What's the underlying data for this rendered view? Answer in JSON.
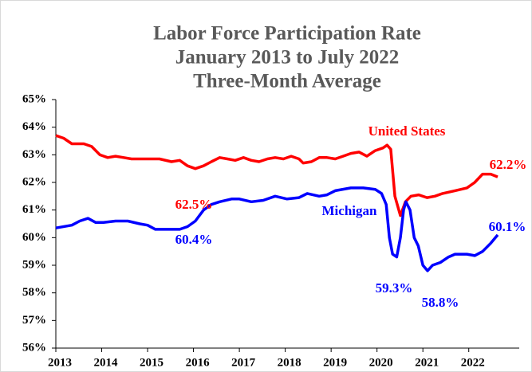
{
  "chart_data": {
    "type": "line",
    "title": "Labor Force Participation Rate",
    "subtitle": [
      "January 2013 to July 2022",
      "Three-Month Average"
    ],
    "xlim": [
      2013,
      2023.1
    ],
    "xticks": [
      2013,
      2014,
      2015,
      2016,
      2017,
      2018,
      2019,
      2020,
      2021,
      2022
    ],
    "ylim": [
      56,
      65
    ],
    "yticks": [
      {
        "value": 56,
        "label": "56%"
      },
      {
        "value": 57,
        "label": "57%"
      },
      {
        "value": 58,
        "label": "58%"
      },
      {
        "value": 59,
        "label": "59%"
      },
      {
        "value": 60,
        "label": "60%"
      },
      {
        "value": 61,
        "label": "61%"
      },
      {
        "value": 62,
        "label": "62%"
      },
      {
        "value": 63,
        "label": "63%"
      },
      {
        "value": 64,
        "label": "64%"
      },
      {
        "value": 65,
        "label": "65%"
      }
    ],
    "grid": false,
    "series": [
      {
        "name": "United States",
        "color": "#ff0000",
        "x": [
          2013.0,
          2013.17,
          2013.35,
          2013.61,
          2013.78,
          2013.96,
          2014.13,
          2014.3,
          2014.48,
          2014.65,
          2015.26,
          2015.52,
          2015.7,
          2015.87,
          2016.04,
          2016.22,
          2016.39,
          2016.57,
          2016.74,
          2016.91,
          2017.09,
          2017.26,
          2017.43,
          2017.61,
          2017.78,
          2017.96,
          2018.13,
          2018.3,
          2018.39,
          2018.57,
          2018.74,
          2018.91,
          2019.09,
          2019.26,
          2019.43,
          2019.61,
          2019.78,
          2019.96,
          2020.13,
          2020.22,
          2020.3,
          2020.39,
          2020.51,
          2020.62,
          2020.74,
          2020.91,
          2021.09,
          2021.26,
          2021.43,
          2021.7,
          2021.96,
          2022.13,
          2022.3,
          2022.48,
          2022.63
        ],
        "values": [
          63.7,
          63.6,
          63.4,
          63.4,
          63.3,
          63.0,
          62.9,
          62.95,
          62.9,
          62.85,
          62.85,
          62.75,
          62.8,
          62.6,
          62.5,
          62.6,
          62.75,
          62.9,
          62.85,
          62.8,
          62.9,
          62.8,
          62.75,
          62.85,
          62.9,
          62.85,
          62.95,
          62.85,
          62.7,
          62.75,
          62.9,
          62.9,
          62.85,
          62.95,
          63.05,
          63.1,
          62.95,
          63.15,
          63.25,
          63.35,
          63.2,
          61.5,
          60.8,
          61.3,
          61.5,
          61.55,
          61.45,
          61.5,
          61.6,
          61.7,
          61.8,
          62.0,
          62.3,
          62.3,
          62.2
        ]
      },
      {
        "name": "Michigan",
        "color": "#0000ff",
        "x": [
          2013.0,
          2013.35,
          2013.52,
          2013.7,
          2013.87,
          2014.04,
          2014.3,
          2014.57,
          2014.83,
          2015.0,
          2015.17,
          2015.7,
          2015.87,
          2016.04,
          2016.22,
          2016.39,
          2016.57,
          2016.83,
          2017.0,
          2017.26,
          2017.52,
          2017.78,
          2018.04,
          2018.3,
          2018.48,
          2018.74,
          2018.91,
          2019.09,
          2019.43,
          2019.7,
          2019.96,
          2020.1,
          2020.2,
          2020.27,
          2020.34,
          2020.43,
          2020.51,
          2020.58,
          2020.63,
          2020.72,
          2020.81,
          2020.9,
          2021.0,
          2021.1,
          2021.21,
          2021.38,
          2021.56,
          2021.7,
          2021.96,
          2022.13,
          2022.3,
          2022.48,
          2022.63
        ],
        "values": [
          60.35,
          60.45,
          60.6,
          60.7,
          60.55,
          60.55,
          60.6,
          60.6,
          60.5,
          60.45,
          60.3,
          60.3,
          60.4,
          60.6,
          61.0,
          61.2,
          61.3,
          61.4,
          61.4,
          61.3,
          61.35,
          61.5,
          61.4,
          61.45,
          61.6,
          61.5,
          61.55,
          61.7,
          61.8,
          61.8,
          61.75,
          61.6,
          61.2,
          60.0,
          59.4,
          59.3,
          60.0,
          61.0,
          61.3,
          61.0,
          60.0,
          59.7,
          59.0,
          58.8,
          59.0,
          59.1,
          59.3,
          59.4,
          59.4,
          59.35,
          59.5,
          59.8,
          60.1
        ]
      }
    ],
    "annotations": [
      {
        "text": "United States",
        "color": "#ff0000"
      },
      {
        "text": "Michigan",
        "color": "#0000ff"
      },
      {
        "text": "62.5%",
        "color": "#ff0000"
      },
      {
        "text": "62.2%",
        "color": "#ff0000"
      },
      {
        "text": "60.4%",
        "color": "#0000ff"
      },
      {
        "text": "59.3%",
        "color": "#0000ff"
      },
      {
        "text": "58.8%",
        "color": "#0000ff"
      },
      {
        "text": "60.1%",
        "color": "#0000ff"
      }
    ]
  }
}
